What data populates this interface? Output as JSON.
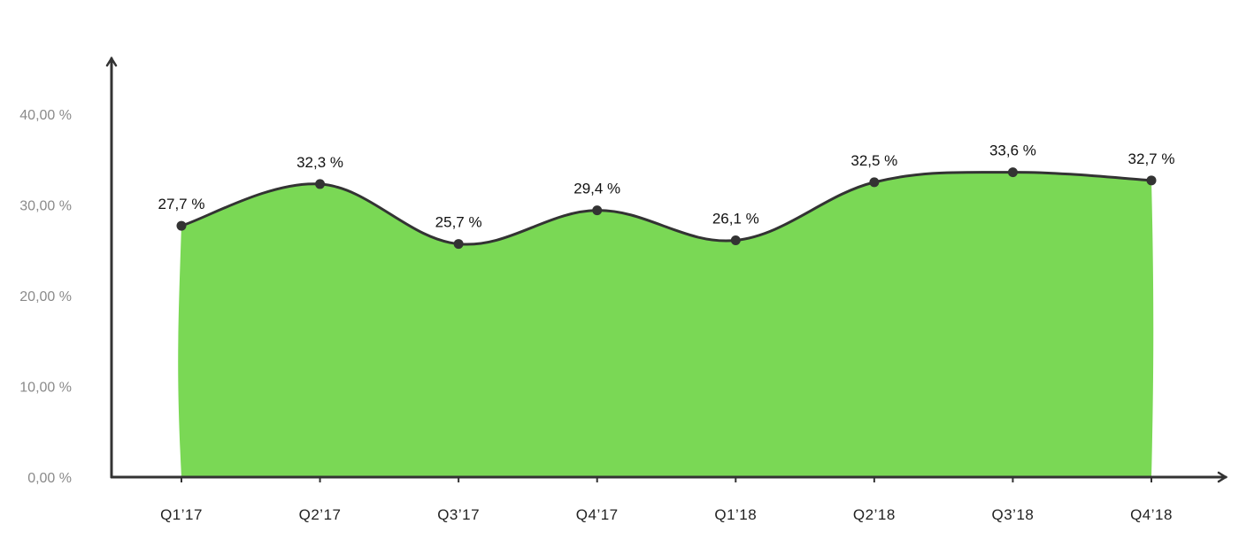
{
  "chart_data": {
    "type": "area",
    "categories": [
      "Q1’17",
      "Q2’17",
      "Q3’17",
      "Q4’17",
      "Q1’18",
      "Q2’18",
      "Q3’18",
      "Q4’18"
    ],
    "series": [
      {
        "values": [
          27.7,
          32.3,
          25.7,
          29.4,
          26.1,
          32.5,
          33.6,
          32.7
        ]
      }
    ],
    "data_labels": [
      "27,7 %",
      "32,3 %",
      "25,7 %",
      "29,4 %",
      "26,1 %",
      "32,5 %",
      "33,6 %",
      "32,7 %"
    ],
    "yticks": [
      {
        "value": 0,
        "label": "0,00 %"
      },
      {
        "value": 10,
        "label": "10,00 %"
      },
      {
        "value": 20,
        "label": "20,00 %"
      },
      {
        "value": 30,
        "label": "30,00 %"
      },
      {
        "value": 40,
        "label": "40,00 %"
      }
    ],
    "ylim": [
      0,
      46
    ],
    "title": "",
    "xlabel": "",
    "ylabel": "",
    "grid": false,
    "legend": "none",
    "colors": {
      "fill": "#7ad855",
      "line": "#333333",
      "axis": "#333333"
    }
  }
}
